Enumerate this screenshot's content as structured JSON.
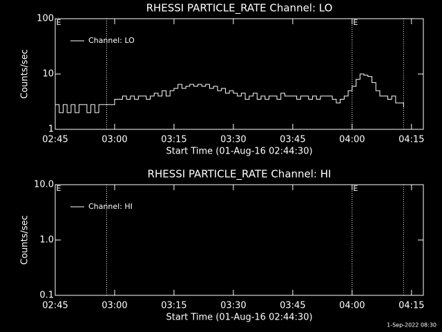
{
  "chart_data": [
    {
      "type": "line",
      "title": "RHESSI PARTICLE_RATE Channel: LO",
      "xlabel": "Start Time (01-Aug-16 02:44:30)",
      "ylabel": "Counts/sec",
      "log_y": true,
      "ylim": [
        1,
        100
      ],
      "yticks": [
        1,
        10,
        100
      ],
      "xlim": [
        "02:45",
        "04:18"
      ],
      "xticks": [
        "02:45",
        "03:00",
        "03:15",
        "03:30",
        "03:45",
        "04:00",
        "04:15"
      ],
      "event_lines": [
        "02:58",
        "04:00",
        "04:13"
      ],
      "annotations": [
        {
          "x": "02:45",
          "text": "E"
        },
        {
          "x": "04:00",
          "text": "E"
        }
      ],
      "legend": "upper left",
      "x": [
        "02:45",
        "02:46",
        "02:47",
        "02:48",
        "02:49",
        "02:50",
        "02:51",
        "02:52",
        "02:53",
        "02:54",
        "02:55",
        "02:56",
        "02:57",
        "02:58",
        "02:59",
        "03:00",
        "03:01",
        "03:02",
        "03:03",
        "03:04",
        "03:05",
        "03:06",
        "03:07",
        "03:08",
        "03:09",
        "03:10",
        "03:11",
        "03:12",
        "03:13",
        "03:14",
        "03:15",
        "03:16",
        "03:17",
        "03:18",
        "03:19",
        "03:20",
        "03:21",
        "03:22",
        "03:23",
        "03:24",
        "03:25",
        "03:26",
        "03:27",
        "03:28",
        "03:29",
        "03:30",
        "03:31",
        "03:32",
        "03:33",
        "03:34",
        "03:35",
        "03:36",
        "03:37",
        "03:38",
        "03:39",
        "03:40",
        "03:41",
        "03:42",
        "03:43",
        "03:44",
        "03:45",
        "03:46",
        "03:47",
        "03:48",
        "03:49",
        "03:50",
        "03:51",
        "03:52",
        "03:53",
        "03:54",
        "03:55",
        "03:56",
        "03:57",
        "03:58",
        "03:59",
        "04:00",
        "04:01",
        "04:02",
        "04:03",
        "04:04",
        "04:05",
        "04:06",
        "04:07",
        "04:08",
        "04:09",
        "04:10",
        "04:11",
        "04:12",
        "04:13"
      ],
      "series": [
        {
          "name": "Channel: LO",
          "color": "#ffffff",
          "values": [
            2.8,
            2,
            2.8,
            2,
            2.8,
            2,
            2.8,
            2.8,
            2,
            2.8,
            2,
            2.8,
            2.8,
            2.8,
            2.8,
            3.5,
            3.5,
            4,
            3.5,
            4,
            3.5,
            4,
            4,
            3.5,
            4,
            4.5,
            4,
            5,
            4,
            5,
            5.5,
            6.5,
            5.5,
            6,
            6.5,
            6,
            6.5,
            6,
            6.5,
            5.5,
            6,
            5,
            5.5,
            4.5,
            5,
            4.5,
            4,
            4.5,
            3.5,
            4,
            4.5,
            3.5,
            4,
            3.5,
            4,
            4,
            3.5,
            4.5,
            4,
            4,
            4,
            3.5,
            4,
            4,
            3.5,
            4,
            3.5,
            4,
            4,
            4,
            3.5,
            3,
            3.5,
            4,
            5,
            6,
            8,
            10,
            9.5,
            9,
            7,
            5,
            4,
            4,
            3.5,
            4,
            3,
            3,
            2.5
          ]
        }
      ]
    },
    {
      "type": "line",
      "title": "RHESSI PARTICLE_RATE Channel: HI",
      "xlabel": "Start Time (01-Aug-16 02:44:30)",
      "ylabel": "Counts/sec",
      "log_y": true,
      "ylim": [
        0.1,
        10
      ],
      "yticks": [
        0.1,
        {
          "value": 1,
          "label": "1.0"
        },
        {
          "value": 10,
          "label": "10.0"
        }
      ],
      "xlim": [
        "02:45",
        "04:18"
      ],
      "xticks": [
        "02:45",
        "03:00",
        "03:15",
        "03:30",
        "03:45",
        "04:00",
        "04:15"
      ],
      "event_lines": [
        "02:58",
        "04:00",
        "04:13"
      ],
      "annotations": [
        {
          "x": "02:45",
          "text": "E"
        },
        {
          "x": "04:00",
          "text": "E"
        }
      ],
      "legend": "upper left",
      "x": [],
      "series": [
        {
          "name": "Channel: HI",
          "color": "#ffffff",
          "values": []
        }
      ]
    }
  ],
  "footer": "1-Sep-2022 08:30"
}
